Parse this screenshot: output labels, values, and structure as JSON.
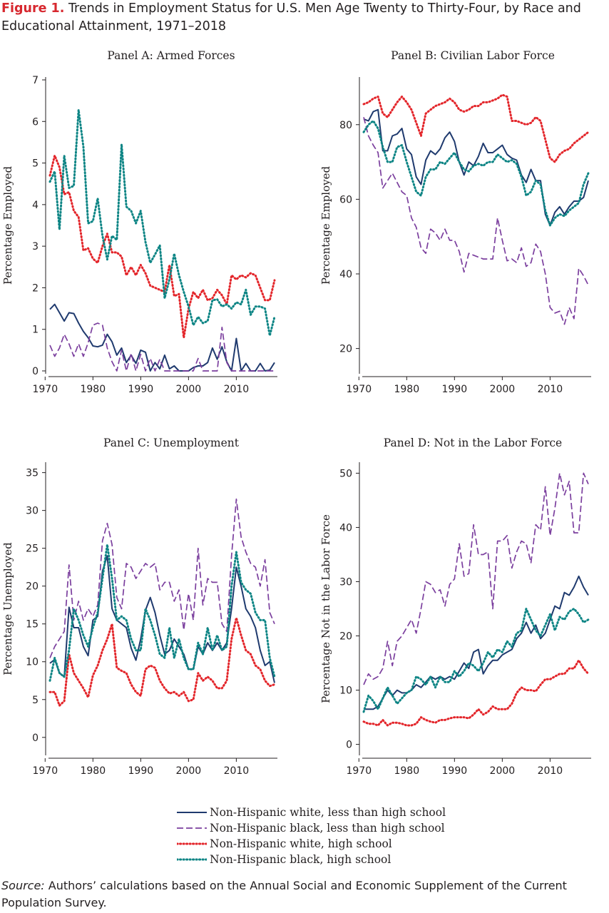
{
  "figure": {
    "label": "Figure 1.",
    "title": "Trends in Employment Status for U.S. Men Age Twenty to Thirty-Four, by Race and Educational Attainment, 1971–2018"
  },
  "source": {
    "lead": "Source:",
    "text": "Authors’ calculations based on the Annual Social and Economic Supplement of the Current Population Survey."
  },
  "legend": [
    {
      "label": "Non-Hispanic white, less than high school",
      "color": "#1f3a6e",
      "dash": "solid"
    },
    {
      "label": "Non-Hispanic black, less than high school",
      "color": "#7b3f9e",
      "dash": "dashed"
    },
    {
      "label": "Non-Hispanic white, high school",
      "color": "#e3262b",
      "dash": "dotted"
    },
    {
      "label": "Non-Hispanic black, high school",
      "color": "#0e8585",
      "dash": "dotted"
    }
  ],
  "chart_data": [
    {
      "type": "line",
      "title": "Panel A: Armed Forces",
      "ylabel": "Percentage Employed",
      "xlim": [
        1971,
        2018
      ],
      "ylim": [
        0,
        7
      ],
      "xticks": [
        1970,
        1980,
        1990,
        2000,
        2010
      ],
      "yticks": [
        0,
        1,
        2,
        3,
        4,
        5,
        6,
        7
      ],
      "x": [
        1971,
        1972,
        1973,
        1974,
        1975,
        1976,
        1977,
        1978,
        1979,
        1980,
        1981,
        1982,
        1983,
        1984,
        1985,
        1986,
        1987,
        1988,
        1989,
        1990,
        1991,
        1992,
        1993,
        1994,
        1995,
        1996,
        1997,
        1998,
        1999,
        2000,
        2001,
        2002,
        2003,
        2004,
        2005,
        2006,
        2007,
        2008,
        2009,
        2010,
        2011,
        2012,
        2013,
        2014,
        2015,
        2016,
        2017,
        2018
      ],
      "series": [
        {
          "values": [
            1.48,
            1.6,
            1.4,
            1.2,
            1.4,
            1.38,
            1.15,
            0.95,
            0.8,
            0.6,
            0.58,
            0.62,
            0.88,
            0.7,
            0.38,
            0.55,
            0.2,
            0.38,
            0.18,
            0.5,
            0.45,
            0.0,
            0.2,
            0.05,
            0.38,
            0.05,
            0.12,
            0.0,
            0.0,
            0.0,
            0.08,
            0.12,
            0.12,
            0.2,
            0.55,
            0.28,
            0.58,
            0.22,
            0.0,
            0.78,
            0.0,
            0.18,
            0.0,
            0.0,
            0.18,
            0.0,
            0.02,
            0.2
          ]
        },
        {
          "values": [
            0.62,
            0.35,
            0.55,
            0.88,
            0.65,
            0.35,
            0.65,
            0.35,
            0.68,
            1.1,
            1.15,
            1.1,
            0.55,
            0.22,
            0.0,
            0.5,
            0.0,
            0.42,
            0.0,
            0.4,
            0.0,
            0.3,
            0.0,
            0.28,
            0.0,
            0.0,
            0.0,
            0.0,
            0.0,
            0.0,
            0.0,
            0.3,
            0.0,
            0.0,
            0.0,
            0.0,
            1.05,
            0.2,
            0.0,
            0.0,
            0.0,
            0.0,
            0.0,
            0.0,
            0.0,
            0.0,
            0.0,
            0.0
          ]
        },
        {
          "values": [
            4.7,
            5.18,
            4.9,
            4.25,
            4.3,
            3.85,
            3.7,
            2.9,
            2.95,
            2.7,
            2.6,
            3.0,
            3.3,
            2.85,
            2.85,
            2.75,
            2.3,
            2.5,
            2.3,
            2.55,
            2.35,
            2.05,
            2.0,
            1.95,
            1.9,
            2.55,
            1.8,
            1.85,
            0.8,
            1.5,
            1.9,
            1.75,
            1.95,
            1.7,
            1.75,
            1.95,
            1.82,
            1.6,
            2.3,
            2.2,
            2.3,
            2.25,
            2.35,
            2.3,
            2.0,
            1.7,
            1.7,
            2.18
          ]
        },
        {
          "values": [
            4.55,
            4.8,
            3.4,
            5.18,
            4.4,
            4.45,
            6.28,
            5.4,
            3.55,
            3.6,
            4.15,
            3.25,
            2.68,
            3.25,
            3.15,
            5.45,
            3.95,
            3.85,
            3.55,
            3.85,
            3.1,
            2.6,
            2.8,
            3.02,
            1.75,
            2.2,
            2.82,
            2.3,
            1.9,
            1.55,
            1.1,
            1.3,
            1.15,
            1.2,
            1.7,
            1.72,
            1.55,
            1.6,
            1.5,
            1.65,
            1.6,
            1.95,
            1.35,
            1.55,
            1.55,
            1.5,
            0.85,
            1.3
          ]
        }
      ]
    },
    {
      "type": "line",
      "title": "Panel B: Civilian Labor Force",
      "ylabel": "Percentage Employed",
      "xlim": [
        1971,
        2018
      ],
      "ylim": [
        14,
        92
      ],
      "xticks": [
        1970,
        1980,
        1990,
        2000,
        2010
      ],
      "yticks": [
        20,
        40,
        60,
        80
      ],
      "x": [
        1971,
        1972,
        1973,
        1974,
        1975,
        1976,
        1977,
        1978,
        1979,
        1980,
        1981,
        1982,
        1983,
        1984,
        1985,
        1986,
        1987,
        1988,
        1989,
        1990,
        1991,
        1992,
        1993,
        1994,
        1995,
        1996,
        1997,
        1998,
        1999,
        2000,
        2001,
        2002,
        2003,
        2004,
        2005,
        2006,
        2007,
        2008,
        2009,
        2010,
        2011,
        2012,
        2013,
        2014,
        2015,
        2016,
        2017,
        2018
      ],
      "series": [
        {
          "values": [
            81.5,
            81.0,
            83.5,
            84.0,
            73.0,
            73.0,
            77.0,
            77.5,
            79.0,
            73.5,
            72.0,
            66.0,
            64.0,
            70.5,
            73.0,
            72.0,
            73.5,
            76.5,
            78.0,
            75.5,
            70.0,
            66.5,
            70.0,
            69.0,
            71.5,
            75.0,
            72.5,
            72.5,
            73.5,
            74.5,
            72.0,
            71.0,
            70.5,
            66.5,
            64.5,
            68.0,
            65.0,
            65.0,
            56.0,
            53.0,
            56.5,
            58.0,
            56.0,
            58.0,
            59.5,
            59.5,
            60.5,
            65.0
          ]
        },
        {
          "values": [
            82.0,
            77.0,
            74.5,
            72.5,
            63.0,
            65.0,
            67.0,
            64.5,
            62.0,
            61.0,
            55.0,
            52.5,
            47.0,
            45.5,
            52.0,
            51.0,
            49.0,
            52.0,
            49.0,
            49.0,
            46.0,
            40.5,
            45.5,
            45.0,
            44.5,
            44.0,
            44.0,
            44.0,
            55.0,
            49.0,
            43.5,
            44.0,
            43.0,
            47.0,
            42.0,
            43.0,
            48.0,
            46.0,
            40.0,
            31.0,
            29.5,
            30.0,
            26.5,
            31.0,
            28.0,
            41.5,
            39.5,
            37.0
          ]
        },
        {
          "values": [
            85.5,
            86.0,
            87.0,
            87.5,
            83.0,
            82.0,
            84.0,
            86.0,
            87.5,
            86.0,
            84.0,
            80.5,
            77.0,
            83.0,
            84.0,
            85.0,
            85.5,
            86.0,
            87.0,
            86.0,
            84.0,
            83.5,
            84.0,
            85.0,
            85.0,
            86.0,
            86.0,
            86.5,
            87.0,
            88.0,
            87.5,
            81.0,
            81.0,
            80.5,
            80.0,
            80.5,
            82.0,
            81.0,
            76.0,
            71.0,
            70.0,
            72.0,
            73.0,
            73.5,
            75.0,
            76.0,
            77.0,
            78.0
          ]
        },
        {
          "values": [
            78.0,
            80.0,
            81.0,
            79.0,
            74.0,
            70.0,
            70.0,
            74.0,
            74.5,
            70.0,
            66.0,
            62.0,
            61.0,
            66.0,
            68.0,
            68.0,
            70.0,
            69.5,
            71.0,
            72.5,
            70.0,
            68.0,
            67.5,
            69.0,
            69.5,
            69.0,
            70.0,
            70.0,
            72.0,
            71.0,
            70.0,
            70.5,
            69.5,
            66.0,
            61.0,
            62.0,
            65.0,
            64.0,
            57.0,
            53.0,
            55.0,
            56.0,
            55.5,
            57.0,
            58.0,
            59.0,
            64.0,
            67.0
          ]
        }
      ]
    },
    {
      "type": "line",
      "title": "Panel C: Unemployment",
      "ylabel": "Percentage Unemployed",
      "xlim": [
        1971,
        2018
      ],
      "ylim": [
        -2,
        36
      ],
      "xticks": [
        1970,
        1980,
        1990,
        2000,
        2010
      ],
      "yticks": [
        0,
        5,
        10,
        15,
        20,
        25,
        30,
        35
      ],
      "x": [
        1971,
        1972,
        1973,
        1974,
        1975,
        1976,
        1977,
        1978,
        1979,
        1980,
        1981,
        1982,
        1983,
        1984,
        1985,
        1986,
        1987,
        1988,
        1989,
        1990,
        1991,
        1992,
        1993,
        1994,
        1995,
        1996,
        1997,
        1998,
        1999,
        2000,
        2001,
        2002,
        2003,
        2004,
        2005,
        2006,
        2007,
        2008,
        2009,
        2010,
        2011,
        2012,
        2013,
        2014,
        2015,
        2016,
        2017,
        2018
      ],
      "series": [
        {
          "values": [
            9.8,
            10.3,
            8.5,
            8.0,
            17.2,
            14.5,
            14.5,
            12.0,
            10.8,
            15.5,
            16.0,
            22.0,
            24.0,
            17.0,
            15.5,
            15.0,
            14.5,
            11.8,
            10.2,
            13.0,
            16.8,
            18.5,
            16.5,
            13.5,
            11.0,
            11.5,
            13.0,
            12.0,
            11.0,
            9.0,
            9.0,
            12.0,
            11.0,
            12.5,
            11.5,
            12.5,
            11.5,
            12.5,
            17.0,
            22.5,
            20.0,
            17.0,
            16.0,
            14.5,
            11.5,
            9.5,
            10.0,
            7.2
          ]
        },
        {
          "values": [
            10.5,
            12.0,
            13.0,
            14.0,
            22.8,
            15.5,
            18.0,
            15.5,
            17.0,
            16.0,
            17.5,
            26.0,
            28.3,
            25.5,
            18.5,
            17.0,
            23.0,
            22.5,
            21.0,
            22.0,
            23.0,
            22.5,
            23.0,
            19.5,
            20.5,
            20.5,
            18.0,
            19.5,
            14.2,
            19.0,
            15.5,
            25.0,
            17.5,
            21.0,
            20.5,
            20.5,
            15.0,
            14.0,
            24.0,
            31.5,
            26.5,
            24.5,
            23.0,
            22.5,
            20.0,
            23.5,
            16.5,
            15.0
          ]
        },
        {
          "values": [
            6.0,
            6.0,
            4.2,
            4.8,
            11.0,
            8.5,
            7.5,
            6.5,
            5.3,
            8.2,
            9.5,
            11.5,
            13.0,
            15.0,
            9.2,
            8.8,
            8.5,
            7.0,
            6.0,
            5.5,
            9.0,
            9.5,
            9.2,
            7.5,
            6.5,
            5.8,
            6.0,
            5.5,
            6.0,
            4.8,
            5.0,
            8.5,
            7.5,
            8.0,
            7.5,
            6.5,
            6.5,
            7.5,
            13.0,
            15.8,
            13.5,
            11.5,
            11.0,
            9.5,
            9.0,
            7.5,
            6.8,
            7.0
          ]
        },
        {
          "values": [
            7.5,
            10.5,
            8.5,
            8.0,
            11.5,
            17.0,
            15.5,
            13.5,
            12.0,
            14.5,
            16.5,
            21.0,
            25.5,
            21.0,
            15.5,
            16.0,
            15.5,
            13.0,
            11.5,
            11.5,
            17.0,
            15.5,
            13.5,
            11.0,
            10.5,
            14.5,
            10.5,
            13.0,
            10.5,
            9.0,
            9.0,
            12.5,
            11.0,
            14.5,
            11.5,
            13.5,
            11.5,
            12.0,
            20.0,
            24.5,
            20.5,
            19.5,
            19.0,
            16.5,
            15.5,
            15.5,
            10.5,
            8.0
          ]
        }
      ]
    },
    {
      "type": "line",
      "title": "Panel D: Not in the Labor Force",
      "ylabel": "Percentage Not in the Labor Force",
      "xlim": [
        1971,
        2018
      ],
      "ylim": [
        -1.5,
        51.5
      ],
      "xticks": [
        1970,
        1980,
        1990,
        2000,
        2010
      ],
      "yticks": [
        0,
        10,
        20,
        30,
        40,
        50
      ],
      "x": [
        1971,
        1972,
        1973,
        1974,
        1975,
        1976,
        1977,
        1978,
        1979,
        1980,
        1981,
        1982,
        1983,
        1984,
        1985,
        1986,
        1987,
        1988,
        1989,
        1990,
        1991,
        1992,
        1993,
        1994,
        1995,
        1996,
        1997,
        1998,
        1999,
        2000,
        2001,
        2002,
        2003,
        2004,
        2005,
        2006,
        2007,
        2008,
        2009,
        2010,
        2011,
        2012,
        2013,
        2014,
        2015,
        2016,
        2017,
        2018
      ],
      "series": [
        {
          "values": [
            6.5,
            6.5,
            6.5,
            7.0,
            8.5,
            10.0,
            9.0,
            10.0,
            9.5,
            9.5,
            10.0,
            11.0,
            10.5,
            11.5,
            12.5,
            12.0,
            12.5,
            12.0,
            12.5,
            12.0,
            13.5,
            15.0,
            14.0,
            17.0,
            17.5,
            13.0,
            14.5,
            15.5,
            15.5,
            16.5,
            17.0,
            17.5,
            19.5,
            20.5,
            22.5,
            20.5,
            22.0,
            19.5,
            20.5,
            23.0,
            25.5,
            25.0,
            28.0,
            27.5,
            29.0,
            31.0,
            29.0,
            27.5
          ]
        },
        {
          "values": [
            11.0,
            13.0,
            12.0,
            12.5,
            14.0,
            19.0,
            14.5,
            19.0,
            20.0,
            21.5,
            23.0,
            20.5,
            25.0,
            30.0,
            29.5,
            28.0,
            28.5,
            25.5,
            29.5,
            30.5,
            37.0,
            31.0,
            31.5,
            40.5,
            35.0,
            35.0,
            35.5,
            25.0,
            37.5,
            37.5,
            38.5,
            32.5,
            35.5,
            37.5,
            37.0,
            33.5,
            40.5,
            39.5,
            47.5,
            38.5,
            43.5,
            50.0,
            46.0,
            48.5,
            39.0,
            39.0,
            50.0,
            48.0
          ]
        },
        {
          "values": [
            4.2,
            3.8,
            3.8,
            3.5,
            4.5,
            3.5,
            4.0,
            4.0,
            3.8,
            3.5,
            3.5,
            3.8,
            5.0,
            4.5,
            4.2,
            4.0,
            4.5,
            4.5,
            4.8,
            5.0,
            5.0,
            5.0,
            4.8,
            5.5,
            6.5,
            5.5,
            6.0,
            7.0,
            6.5,
            6.5,
            6.5,
            7.5,
            9.5,
            10.5,
            10.0,
            10.0,
            9.8,
            11.0,
            12.0,
            12.0,
            12.5,
            13.0,
            13.0,
            14.0,
            14.0,
            15.5,
            14.0,
            13.0
          ]
        },
        {
          "values": [
            6.0,
            9.0,
            8.0,
            6.5,
            8.5,
            10.5,
            9.0,
            7.5,
            8.5,
            9.5,
            10.0,
            12.5,
            12.0,
            11.0,
            12.5,
            10.5,
            12.5,
            11.5,
            11.5,
            13.5,
            12.5,
            13.5,
            15.0,
            14.5,
            13.5,
            15.0,
            17.0,
            16.0,
            17.5,
            17.0,
            19.0,
            18.0,
            20.5,
            21.0,
            25.0,
            23.0,
            21.0,
            20.0,
            22.0,
            24.0,
            21.0,
            23.5,
            23.0,
            24.5,
            25.0,
            24.0,
            22.5,
            23.0
          ]
        }
      ]
    }
  ]
}
